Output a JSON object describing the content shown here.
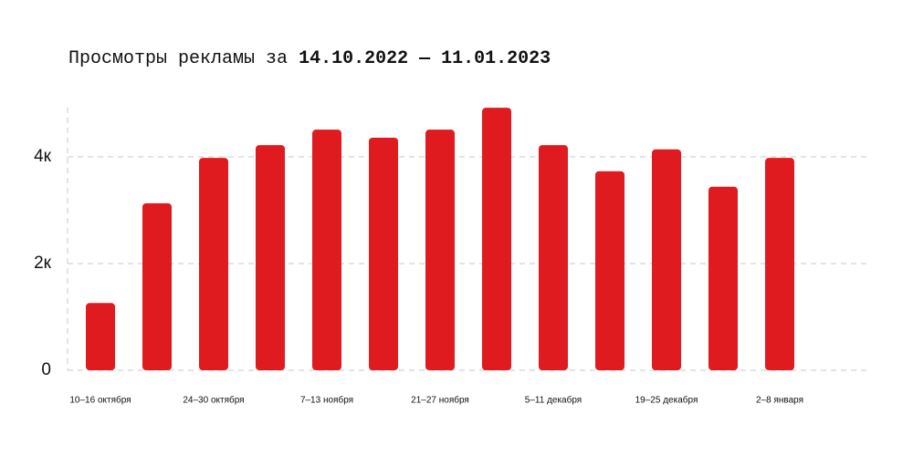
{
  "chart_data": {
    "type": "bar",
    "title": "Просмотры рекламы за",
    "period": "14.10.2022 — 11.01.2023",
    "categories": [
      "10–16 октября",
      null,
      "24–30 октября",
      null,
      "7–13 ноября",
      null,
      "21–27 ноября",
      null,
      "5–11 декабря",
      null,
      "19–25 декабря",
      null,
      "2–8 января"
    ],
    "values": [
      1260,
      3130,
      3980,
      4220,
      4510,
      4360,
      4510,
      4920,
      4220,
      3730,
      4140,
      3440,
      3980
    ],
    "color": "#e01b1f",
    "ylim": [
      0,
      5000
    ],
    "yticks": [
      0,
      {
        "value": 2000,
        "label": "2к"
      },
      {
        "value": 4000,
        "label": "4к"
      }
    ],
    "grid": true
  }
}
